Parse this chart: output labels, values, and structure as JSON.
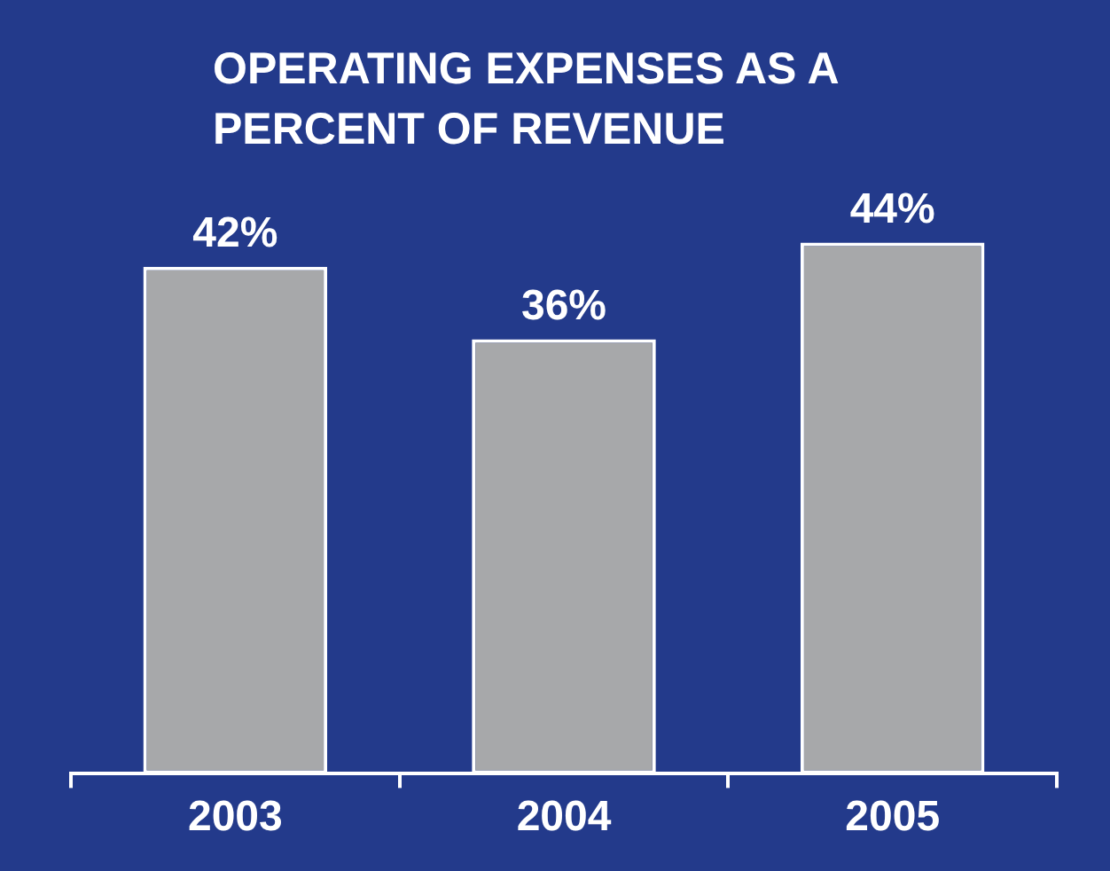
{
  "chart_data": {
    "type": "bar",
    "title": "OPERATING EXPENSES AS A PERCENT OF REVENUE",
    "categories": [
      "2003",
      "2004",
      "2005"
    ],
    "values": [
      42,
      36,
      44
    ],
    "value_labels": [
      "42%",
      "36%",
      "44%"
    ],
    "color": "#a7a8aa"
  }
}
